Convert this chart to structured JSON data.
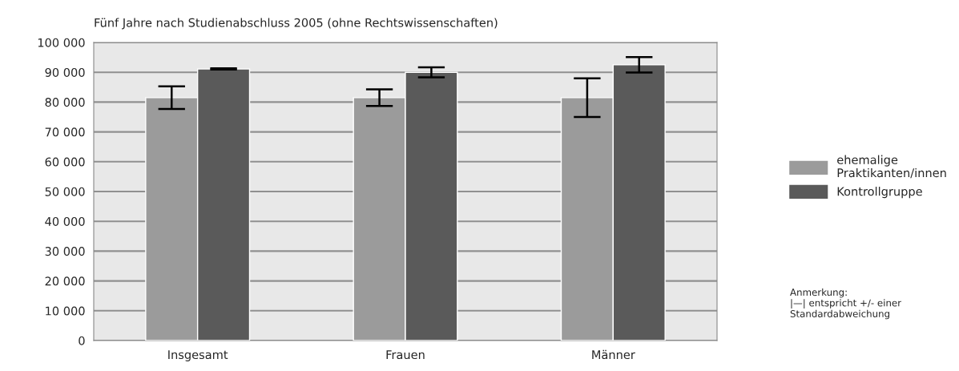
{
  "chart_data": {
    "type": "bar",
    "title": "Fünf Jahre nach Studienabschluss 2005 (ohne Rechtswissenschaften)",
    "categories": [
      "Insgesamt",
      "Frauen",
      "Männer"
    ],
    "series": [
      {
        "name": "ehemalige\nPraktikanten/innen",
        "color": "#9b9b9b",
        "values": [
          81500,
          81500,
          81500
        ],
        "errors": [
          3800,
          2800,
          6500
        ]
      },
      {
        "name": "Kontrollgruppe",
        "color": "#5a5a5a",
        "values": [
          91100,
          90000,
          92500
        ],
        "errors": [
          200,
          1700,
          2600
        ]
      }
    ],
    "ylim": [
      0,
      100000
    ],
    "yticks": [
      0,
      {
        "value": 10000,
        "label": "10 000"
      },
      {
        "value": 20000,
        "label": "20 000"
      },
      {
        "value": 30000,
        "label": "30 000"
      },
      {
        "value": 40000,
        "label": "40 000"
      },
      {
        "value": 50000,
        "label": "50 000"
      },
      {
        "value": 60000,
        "label": "60 000"
      },
      {
        "value": 70000,
        "label": "70 000"
      },
      {
        "value": 80000,
        "label": "80 000"
      },
      {
        "value": 90000,
        "label": "90 000"
      },
      {
        "value": 100000,
        "label": "100 000"
      }
    ],
    "grid": "y",
    "legend": "right",
    "annotations": [
      "Anmerkung:\n|—| entspricht +/- einer\nStandardabweichung"
    ]
  }
}
